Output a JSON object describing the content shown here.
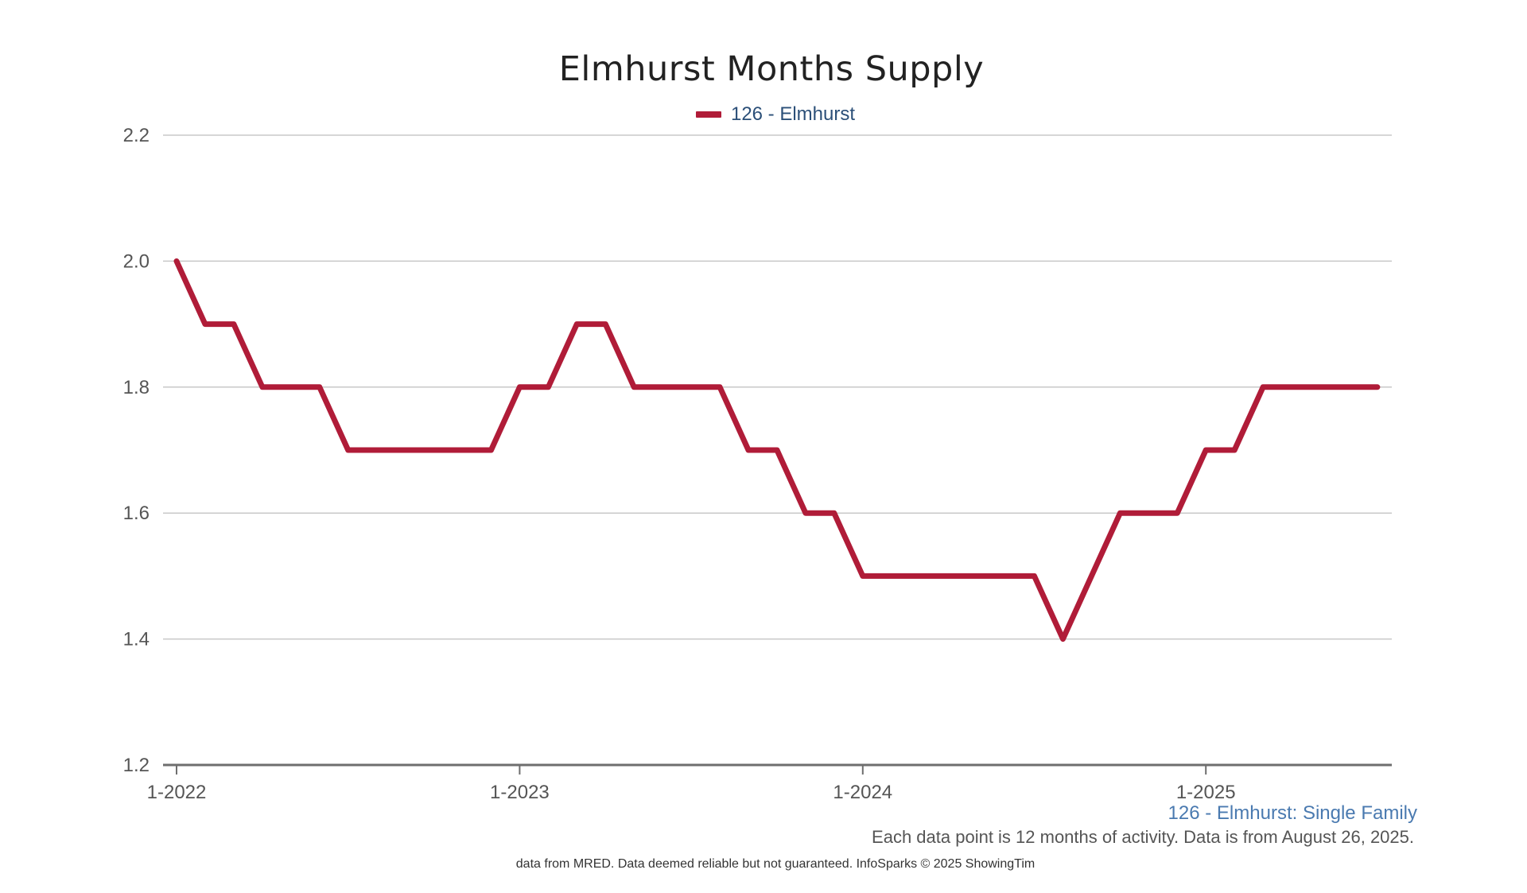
{
  "chart_data": {
    "type": "line",
    "title": "Elmhurst Months Supply",
    "xlabel": "",
    "ylabel": "",
    "x_ticks": [
      "1-2022",
      "1-2023",
      "1-2024",
      "1-2025"
    ],
    "y_ticks": [
      "1.2",
      "1.4",
      "1.6",
      "1.8",
      "2.0",
      "2.2"
    ],
    "ylim": [
      1.2,
      2.2
    ],
    "grid": true,
    "legend_position": "top-center",
    "series": [
      {
        "name": "126 - Elmhurst",
        "color": "#b01c38",
        "x": [
          "1-2022",
          "2-2022",
          "3-2022",
          "4-2022",
          "5-2022",
          "6-2022",
          "7-2022",
          "8-2022",
          "9-2022",
          "10-2022",
          "11-2022",
          "12-2022",
          "1-2023",
          "2-2023",
          "3-2023",
          "4-2023",
          "5-2023",
          "6-2023",
          "7-2023",
          "8-2023",
          "9-2023",
          "10-2023",
          "11-2023",
          "12-2023",
          "1-2024",
          "2-2024",
          "3-2024",
          "4-2024",
          "5-2024",
          "6-2024",
          "7-2024",
          "8-2024",
          "9-2024",
          "10-2024",
          "11-2024",
          "12-2024",
          "1-2025",
          "2-2025",
          "3-2025",
          "4-2025",
          "5-2025",
          "6-2025",
          "7-2025"
        ],
        "values": [
          2.0,
          1.9,
          1.9,
          1.8,
          1.8,
          1.8,
          1.7,
          1.7,
          1.7,
          1.7,
          1.7,
          1.7,
          1.8,
          1.8,
          1.9,
          1.9,
          1.8,
          1.8,
          1.8,
          1.8,
          1.7,
          1.7,
          1.6,
          1.6,
          1.5,
          1.5,
          1.5,
          1.5,
          1.5,
          1.5,
          1.5,
          1.4,
          1.5,
          1.6,
          1.6,
          1.6,
          1.7,
          1.7,
          1.8,
          1.8,
          1.8,
          1.8,
          1.8
        ]
      }
    ]
  },
  "caption": {
    "series_label": "126 - Elmhurst: Single Family",
    "note": "Each data point is 12 months of activity. Data is from August 26, 2025.",
    "source": "data from MRED. Data deemed reliable but not guaranteed. InfoSparks © 2025 ShowingTim"
  }
}
